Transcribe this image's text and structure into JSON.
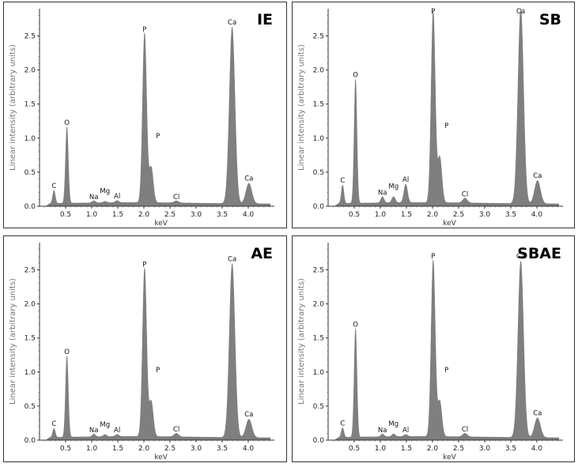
{
  "chart_data": [
    {
      "type": "area",
      "title": "IE",
      "xlabel": "keV",
      "ylabel": "Linear intensity (arbitrary units)",
      "xlim": [
        0.0,
        4.5
      ],
      "ylim": [
        0.0,
        2.9
      ],
      "xticks": [
        "0.5",
        "1.0",
        "1.5",
        "2.0",
        "2.5",
        "3.0",
        "3.5",
        "4.0"
      ],
      "yticks": [
        "0.0",
        "0.5",
        "1.0",
        "1.5",
        "2.0",
        "2.5"
      ],
      "color": "#7f7f7f",
      "series": [
        {
          "peaks": [
            {
              "x": 0.277,
              "y": 0.22,
              "label": "C"
            },
            {
              "x": 0.525,
              "y": 1.15,
              "label": "O"
            },
            {
              "x": 1.041,
              "y": 0.06,
              "label": "Na"
            },
            {
              "x": 1.254,
              "y": 0.05,
              "label": "Mg"
            },
            {
              "x": 1.487,
              "y": 0.06,
              "label": "Al"
            },
            {
              "x": 2.013,
              "y": 2.52,
              "label": "P"
            },
            {
              "x": 2.139,
              "y": 0.55,
              "label": "P"
            },
            {
              "x": 2.622,
              "y": 0.06,
              "label": "Cl"
            },
            {
              "x": 3.691,
              "y": 2.62,
              "label": "Ca"
            },
            {
              "x": 4.012,
              "y": 0.33,
              "label": "Ca"
            }
          ]
        }
      ]
    },
    {
      "type": "area",
      "title": "SB",
      "xlabel": "keV",
      "ylabel": "Linear intensity (arbitrary units)",
      "xlim": [
        0.0,
        4.5
      ],
      "ylim": [
        0.0,
        2.9
      ],
      "xticks": [
        "0.5",
        "1.0",
        "1.5",
        "2.0",
        "2.5",
        "3.0",
        "3.5",
        "4.0"
      ],
      "yticks": [
        "0.0",
        "0.5",
        "1.0",
        "1.5",
        "2.0",
        "2.5"
      ],
      "color": "#7f7f7f",
      "series": [
        {
          "peaks": [
            {
              "x": 0.277,
              "y": 0.3,
              "label": "C"
            },
            {
              "x": 0.525,
              "y": 1.85,
              "label": "O"
            },
            {
              "x": 1.041,
              "y": 0.12,
              "label": "Na"
            },
            {
              "x": 1.254,
              "y": 0.12,
              "label": "Mg"
            },
            {
              "x": 1.487,
              "y": 0.3,
              "label": "Al"
            },
            {
              "x": 2.013,
              "y": 2.85,
              "label": "P"
            },
            {
              "x": 2.139,
              "y": 0.7,
              "label": "P"
            },
            {
              "x": 2.622,
              "y": 0.1,
              "label": "Cl"
            },
            {
              "x": 3.691,
              "y": 2.9,
              "label": "Ca"
            },
            {
              "x": 4.012,
              "y": 0.37,
              "label": "Ca"
            }
          ]
        }
      ]
    },
    {
      "type": "area",
      "title": "AE",
      "xlabel": "keV",
      "ylabel": "Linear intensity (arbitrary units)",
      "xlim": [
        0.0,
        4.5
      ],
      "ylim": [
        0.0,
        2.9
      ],
      "xticks": [
        "0.5",
        "1.0",
        "1.5",
        "2.0",
        "2.5",
        "3.0",
        "3.5",
        "4.0"
      ],
      "yticks": [
        "0.0",
        "0.5",
        "1.0",
        "1.5",
        "2.0",
        "2.5"
      ],
      "color": "#7f7f7f",
      "series": [
        {
          "peaks": [
            {
              "x": 0.277,
              "y": 0.16,
              "label": "C"
            },
            {
              "x": 0.525,
              "y": 1.22,
              "label": "O"
            },
            {
              "x": 1.041,
              "y": 0.07,
              "label": "Na"
            },
            {
              "x": 1.254,
              "y": 0.06,
              "label": "Mg"
            },
            {
              "x": 1.487,
              "y": 0.06,
              "label": "Al"
            },
            {
              "x": 2.013,
              "y": 2.5,
              "label": "P"
            },
            {
              "x": 2.139,
              "y": 0.55,
              "label": "P"
            },
            {
              "x": 2.622,
              "y": 0.08,
              "label": "Cl"
            },
            {
              "x": 3.691,
              "y": 2.58,
              "label": "Ca"
            },
            {
              "x": 4.012,
              "y": 0.3,
              "label": "Ca"
            }
          ]
        }
      ]
    },
    {
      "type": "area",
      "title": "SBAE",
      "xlabel": "keV",
      "ylabel": "Linear intensity (arbitrary units)",
      "xlim": [
        0.0,
        4.5
      ],
      "ylim": [
        0.0,
        2.9
      ],
      "xticks": [
        "0.5",
        "1.0",
        "1.5",
        "2.0",
        "2.5",
        "3.0",
        "3.5",
        "4.0"
      ],
      "yticks": [
        "0.0",
        "0.5",
        "1.0",
        "1.5",
        "2.0",
        "2.5"
      ],
      "color": "#7f7f7f",
      "series": [
        {
          "peaks": [
            {
              "x": 0.277,
              "y": 0.17,
              "label": "C"
            },
            {
              "x": 0.525,
              "y": 1.62,
              "label": "O"
            },
            {
              "x": 1.041,
              "y": 0.07,
              "label": "Na"
            },
            {
              "x": 1.254,
              "y": 0.07,
              "label": "Mg"
            },
            {
              "x": 1.487,
              "y": 0.06,
              "label": "Al"
            },
            {
              "x": 2.013,
              "y": 2.62,
              "label": "P"
            },
            {
              "x": 2.139,
              "y": 0.55,
              "label": "P"
            },
            {
              "x": 2.622,
              "y": 0.08,
              "label": "Cl"
            },
            {
              "x": 3.691,
              "y": 2.62,
              "label": "Ca"
            },
            {
              "x": 4.012,
              "y": 0.32,
              "label": "Ca"
            }
          ]
        }
      ]
    }
  ]
}
